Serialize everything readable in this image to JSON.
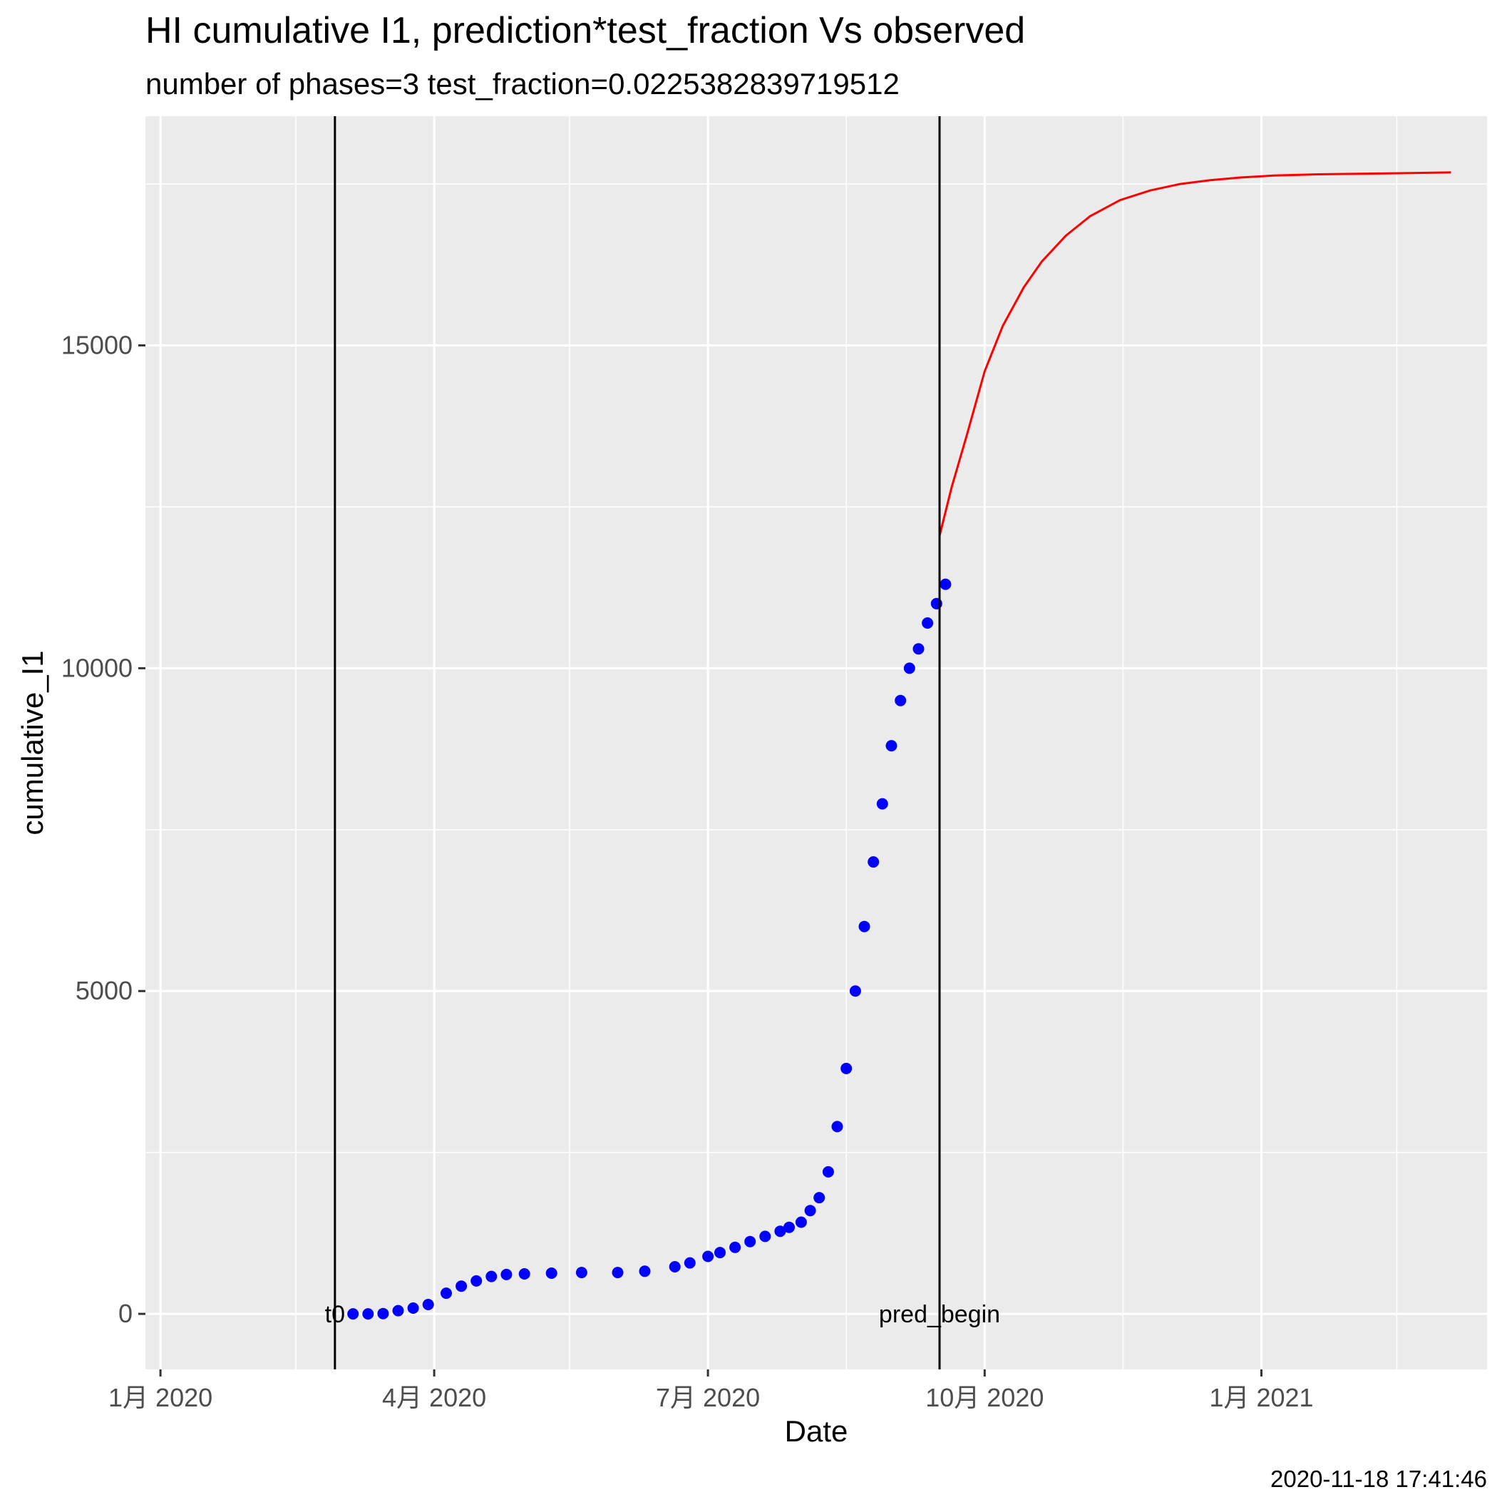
{
  "chart_data": {
    "type": "scatter+line",
    "title": "HI cumulative I1,  prediction*test_fraction Vs observed",
    "subtitle": "number of phases=3   test_fraction=0.0225382839719512",
    "xlabel": "Date",
    "ylabel": "cumulative_I1",
    "caption": "2020-11-18 17:41:46",
    "xlim": [
      "2019-12-27",
      "2021-03-17"
    ],
    "ylim": [
      -860,
      18550
    ],
    "x_ticks": [
      {
        "date": "2020-01-01",
        "label": "1月 2020"
      },
      {
        "date": "2020-04-01",
        "label": "4月 2020"
      },
      {
        "date": "2020-07-01",
        "label": "7月 2020"
      },
      {
        "date": "2020-10-01",
        "label": "10月 2020"
      },
      {
        "date": "2021-01-01",
        "label": "1月 2021"
      }
    ],
    "x_minor_ticks": [
      "2020-02-15",
      "2020-05-16",
      "2020-08-16",
      "2020-11-16",
      "2021-02-15"
    ],
    "y_ticks": [
      0,
      5000,
      10000,
      15000
    ],
    "y_minor_ticks": [
      2500,
      7500,
      12500,
      17500
    ],
    "grid": true,
    "vlines": [
      {
        "date": "2020-02-28",
        "label": "t0"
      },
      {
        "date": "2020-09-16",
        "label": "pred_begin"
      }
    ],
    "series": [
      {
        "kind": "points",
        "color": "#0000ff",
        "x": [
          "2020-03-05",
          "2020-03-10",
          "2020-03-15",
          "2020-03-20",
          "2020-03-25",
          "2020-03-30",
          "2020-04-05",
          "2020-04-10",
          "2020-04-15",
          "2020-04-20",
          "2020-04-25",
          "2020-05-01",
          "2020-05-10",
          "2020-05-20",
          "2020-06-01",
          "2020-06-10",
          "2020-06-20",
          "2020-06-25",
          "2020-07-01",
          "2020-07-05",
          "2020-07-10",
          "2020-07-15",
          "2020-07-20",
          "2020-07-25",
          "2020-07-28",
          "2020-08-01",
          "2020-08-04",
          "2020-08-07",
          "2020-08-10",
          "2020-08-13",
          "2020-08-16",
          "2020-08-19",
          "2020-08-22",
          "2020-08-25",
          "2020-08-28",
          "2020-08-31",
          "2020-09-03",
          "2020-09-06",
          "2020-09-09",
          "2020-09-12",
          "2020-09-15",
          "2020-09-18"
        ],
        "y": [
          0,
          0,
          5,
          50,
          90,
          145,
          320,
          430,
          510,
          580,
          610,
          620,
          630,
          640,
          640,
          660,
          730,
          790,
          890,
          950,
          1030,
          1120,
          1200,
          1280,
          1340,
          1420,
          1600,
          1800,
          2200,
          2900,
          3800,
          5000,
          6000,
          7000,
          7900,
          8800,
          9500,
          10000,
          10300,
          10700,
          11000,
          11300
        ]
      },
      {
        "kind": "line",
        "color": "#ff0000",
        "x": [
          "2020-09-16",
          "2020-09-20",
          "2020-09-25",
          "2020-10-01",
          "2020-10-07",
          "2020-10-14",
          "2020-10-20",
          "2020-10-28",
          "2020-11-05",
          "2020-11-15",
          "2020-11-25",
          "2020-12-05",
          "2020-12-15",
          "2020-12-25",
          "2021-01-05",
          "2021-01-20",
          "2021-02-05",
          "2021-02-20",
          "2021-03-05"
        ],
        "y": [
          12050,
          12800,
          13600,
          14600,
          15300,
          15900,
          16300,
          16700,
          17000,
          17250,
          17400,
          17500,
          17560,
          17600,
          17630,
          17650,
          17660,
          17670,
          17680
        ]
      }
    ]
  }
}
